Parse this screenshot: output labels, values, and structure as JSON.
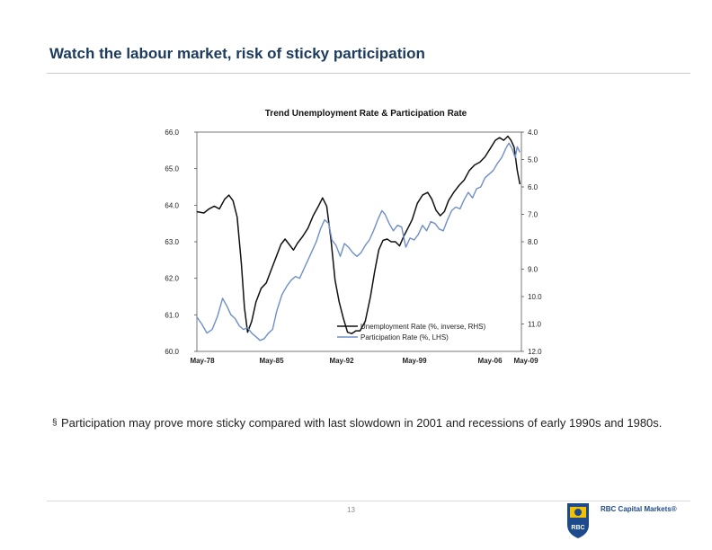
{
  "slide": {
    "title": "Watch the labour market, risk of sticky participation",
    "bullet": "Participation may prove more sticky compared with last slowdown in 2001 and recessions of early 1990s and 1980s.",
    "bullet_marker": "§",
    "page_number": "13",
    "logo_emblem_text": "RBC",
    "logo_text": "RBC Capital Markets®"
  },
  "chart_data": {
    "type": "line",
    "title": "Trend Unemployment Rate & Participation Rate",
    "x_tick_labels": [
      "May-78",
      "May-85",
      "May-92",
      "May-99",
      "May-06",
      "May-09"
    ],
    "x_range": [
      1978.33,
      2009.5
    ],
    "left_axis": {
      "label": "Participation Rate (%, LHS)",
      "range": [
        60.0,
        66.0
      ],
      "ticks": [
        "66.0",
        "65.0",
        "64.0",
        "63.0",
        "62.0",
        "61.0",
        "60.0"
      ]
    },
    "right_axis": {
      "inverted": true,
      "range": [
        4.0,
        12.0
      ],
      "ticks": [
        "4.0",
        "5.0",
        "6.0",
        "7.0",
        "8.0",
        "9.0",
        "10.0",
        "11.0",
        "12.0"
      ]
    },
    "grid": false,
    "legend_position": "bottom-right",
    "series": [
      {
        "name": "Unemployment Rate (%, inverse, RHS)",
        "axis": "right",
        "color": "#111111",
        "points": [
          [
            1978.3,
            6.9
          ],
          [
            1979.0,
            6.95
          ],
          [
            1979.5,
            6.8
          ],
          [
            1980.0,
            6.7
          ],
          [
            1980.5,
            6.8
          ],
          [
            1981.0,
            6.45
          ],
          [
            1981.4,
            6.3
          ],
          [
            1981.8,
            6.5
          ],
          [
            1982.2,
            7.1
          ],
          [
            1982.6,
            8.8
          ],
          [
            1982.9,
            10.4
          ],
          [
            1983.2,
            11.3
          ],
          [
            1983.6,
            10.9
          ],
          [
            1984.0,
            10.2
          ],
          [
            1984.5,
            9.7
          ],
          [
            1985.0,
            9.5
          ],
          [
            1985.5,
            9.0
          ],
          [
            1986.0,
            8.5
          ],
          [
            1986.4,
            8.1
          ],
          [
            1986.8,
            7.9
          ],
          [
            1987.2,
            8.1
          ],
          [
            1987.6,
            8.3
          ],
          [
            1988.0,
            8.05
          ],
          [
            1988.5,
            7.8
          ],
          [
            1989.0,
            7.5
          ],
          [
            1989.5,
            7.05
          ],
          [
            1990.0,
            6.7
          ],
          [
            1990.4,
            6.4
          ],
          [
            1990.8,
            6.7
          ],
          [
            1991.2,
            7.9
          ],
          [
            1991.6,
            9.4
          ],
          [
            1992.0,
            10.2
          ],
          [
            1992.4,
            10.8
          ],
          [
            1992.8,
            11.3
          ],
          [
            1993.2,
            11.35
          ],
          [
            1993.6,
            11.25
          ],
          [
            1994.0,
            11.25
          ],
          [
            1994.5,
            10.9
          ],
          [
            1995.0,
            10.0
          ],
          [
            1995.4,
            9.1
          ],
          [
            1995.8,
            8.3
          ],
          [
            1996.2,
            7.95
          ],
          [
            1996.6,
            7.9
          ],
          [
            1997.0,
            8.0
          ],
          [
            1997.4,
            8.0
          ],
          [
            1997.8,
            8.15
          ],
          [
            1998.2,
            7.8
          ],
          [
            1998.6,
            7.5
          ],
          [
            1999.0,
            7.2
          ],
          [
            1999.5,
            6.6
          ],
          [
            2000.0,
            6.3
          ],
          [
            2000.5,
            6.2
          ],
          [
            2000.9,
            6.45
          ],
          [
            2001.3,
            6.85
          ],
          [
            2001.7,
            7.05
          ],
          [
            2002.1,
            6.9
          ],
          [
            2002.5,
            6.5
          ],
          [
            2003.0,
            6.2
          ],
          [
            2003.5,
            5.95
          ],
          [
            2004.0,
            5.75
          ],
          [
            2004.5,
            5.4
          ],
          [
            2005.0,
            5.2
          ],
          [
            2005.5,
            5.1
          ],
          [
            2006.0,
            4.9
          ],
          [
            2006.5,
            4.6
          ],
          [
            2007.0,
            4.3
          ],
          [
            2007.4,
            4.2
          ],
          [
            2007.8,
            4.3
          ],
          [
            2008.2,
            4.15
          ],
          [
            2008.5,
            4.3
          ],
          [
            2008.8,
            4.55
          ],
          [
            2009.1,
            5.4
          ],
          [
            2009.35,
            5.9
          ]
        ]
      },
      {
        "name": "Participation Rate (%, LHS)",
        "axis": "left",
        "color": "#6f8fc8",
        "points": [
          [
            1978.3,
            60.95
          ],
          [
            1978.8,
            60.75
          ],
          [
            1979.3,
            60.5
          ],
          [
            1979.8,
            60.6
          ],
          [
            1980.3,
            60.95
          ],
          [
            1980.8,
            61.45
          ],
          [
            1981.2,
            61.25
          ],
          [
            1981.6,
            61.0
          ],
          [
            1982.0,
            60.9
          ],
          [
            1982.4,
            60.7
          ],
          [
            1982.8,
            60.6
          ],
          [
            1983.2,
            60.65
          ],
          [
            1983.6,
            60.5
          ],
          [
            1984.0,
            60.4
          ],
          [
            1984.4,
            60.3
          ],
          [
            1984.8,
            60.35
          ],
          [
            1985.2,
            60.5
          ],
          [
            1985.6,
            60.6
          ],
          [
            1986.0,
            61.1
          ],
          [
            1986.5,
            61.55
          ],
          [
            1987.0,
            61.8
          ],
          [
            1987.4,
            61.95
          ],
          [
            1987.8,
            62.05
          ],
          [
            1988.2,
            62.0
          ],
          [
            1988.6,
            62.25
          ],
          [
            1989.0,
            62.5
          ],
          [
            1989.4,
            62.75
          ],
          [
            1989.8,
            63.0
          ],
          [
            1990.2,
            63.35
          ],
          [
            1990.6,
            63.6
          ],
          [
            1991.0,
            63.5
          ],
          [
            1991.3,
            63.05
          ],
          [
            1991.7,
            62.9
          ],
          [
            1992.1,
            62.6
          ],
          [
            1992.5,
            62.95
          ],
          [
            1992.9,
            62.85
          ],
          [
            1993.3,
            62.7
          ],
          [
            1993.7,
            62.6
          ],
          [
            1994.1,
            62.7
          ],
          [
            1994.5,
            62.9
          ],
          [
            1994.9,
            63.05
          ],
          [
            1995.3,
            63.3
          ],
          [
            1995.7,
            63.6
          ],
          [
            1996.1,
            63.85
          ],
          [
            1996.4,
            63.75
          ],
          [
            1996.8,
            63.5
          ],
          [
            1997.2,
            63.3
          ],
          [
            1997.6,
            63.45
          ],
          [
            1998.0,
            63.4
          ],
          [
            1998.4,
            62.85
          ],
          [
            1998.8,
            63.1
          ],
          [
            1999.2,
            63.05
          ],
          [
            1999.6,
            63.2
          ],
          [
            2000.0,
            63.45
          ],
          [
            2000.4,
            63.3
          ],
          [
            2000.8,
            63.55
          ],
          [
            2001.2,
            63.5
          ],
          [
            2001.6,
            63.35
          ],
          [
            2002.0,
            63.3
          ],
          [
            2002.4,
            63.6
          ],
          [
            2002.8,
            63.85
          ],
          [
            2003.2,
            63.95
          ],
          [
            2003.6,
            63.9
          ],
          [
            2004.0,
            64.15
          ],
          [
            2004.4,
            64.35
          ],
          [
            2004.8,
            64.2
          ],
          [
            2005.2,
            64.45
          ],
          [
            2005.6,
            64.5
          ],
          [
            2006.0,
            64.75
          ],
          [
            2006.4,
            64.85
          ],
          [
            2006.8,
            64.95
          ],
          [
            2007.2,
            65.15
          ],
          [
            2007.6,
            65.3
          ],
          [
            2008.0,
            65.55
          ],
          [
            2008.3,
            65.7
          ],
          [
            2008.6,
            65.55
          ],
          [
            2008.9,
            65.3
          ],
          [
            2009.1,
            65.6
          ],
          [
            2009.35,
            65.45
          ]
        ]
      }
    ]
  }
}
